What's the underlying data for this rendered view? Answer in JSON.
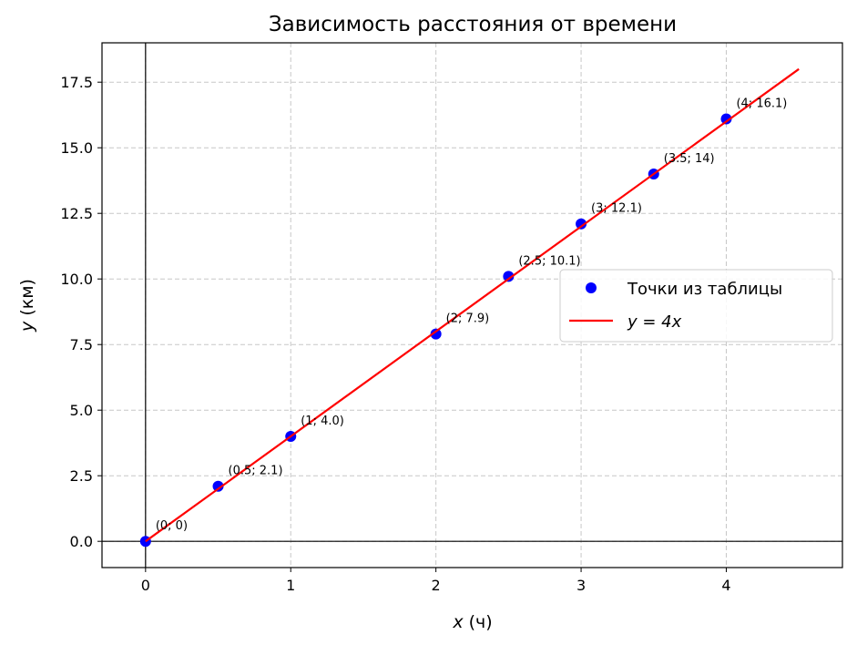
{
  "chart_data": {
    "type": "scatter",
    "title": "Зависимость расстояния от времени",
    "xlabel": "x (ч)",
    "ylabel": "y (км)",
    "xlim": [
      -0.3,
      4.8
    ],
    "ylim": [
      -1.0,
      19.0
    ],
    "xticks": [
      0,
      1,
      2,
      3,
      4
    ],
    "xtick_labels": [
      "0",
      "1",
      "2",
      "3",
      "4"
    ],
    "yticks": [
      0.0,
      2.5,
      5.0,
      7.5,
      10.0,
      12.5,
      15.0,
      17.5
    ],
    "ytick_labels": [
      "0.0",
      "2.5",
      "5.0",
      "7.5",
      "10.0",
      "12.5",
      "15.0",
      "17.5"
    ],
    "grid": true,
    "legend_position": "center-right",
    "series": [
      {
        "name": "Точки из таблицы",
        "kind": "scatter",
        "color": "#0000ff",
        "x": [
          0,
          0.5,
          1,
          2,
          2.5,
          3,
          3.5,
          4
        ],
        "y": [
          0,
          2.1,
          4.0,
          7.9,
          10.1,
          12.1,
          14.0,
          16.1
        ],
        "labels": [
          "(0; 0)",
          "(0.5; 2.1)",
          "(1; 4.0)",
          "(2; 7.9)",
          "(2.5; 10.1)",
          "(3; 12.1)",
          "(3.5; 14)",
          "(4; 16.1)"
        ]
      },
      {
        "name": "y = 4x",
        "kind": "line",
        "color": "#ff0000",
        "x": [
          0,
          4.5
        ],
        "y": [
          0,
          18
        ]
      }
    ]
  }
}
